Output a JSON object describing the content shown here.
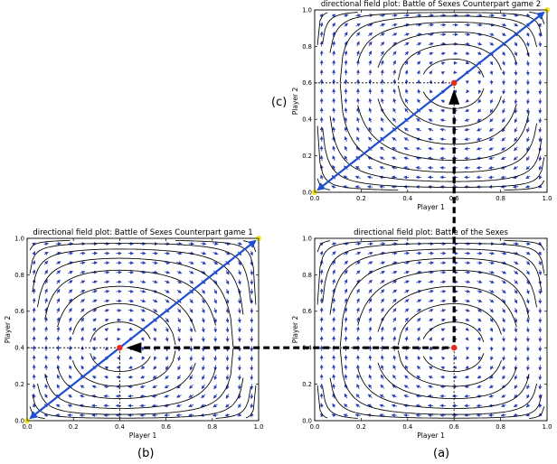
{
  "panels": [
    {
      "id": "a",
      "caption": "(a)",
      "title": "directional field plot: Battle of the Sexes",
      "xlabel": "Player 1",
      "ylabel": "Player 2",
      "xticks": [
        "0.0",
        "0.2",
        "0.4",
        "0.6",
        "0.8",
        "1.0"
      ],
      "yticks": [
        "0.0",
        "0.2",
        "0.4",
        "0.6",
        "0.8",
        "1.0"
      ],
      "equilibrium": [
        0.6,
        0.4
      ],
      "diagonal": "none",
      "yellow_dots": []
    },
    {
      "id": "b",
      "caption": "(b)",
      "title": "directional field plot: Battle of Sexes Counterpart game 1",
      "xlabel": "Player 1",
      "ylabel": "Player 2",
      "xticks": [
        "0.0",
        "0.2",
        "0.4",
        "0.6",
        "0.8",
        "1.0"
      ],
      "yticks": [
        "0.0",
        "0.2",
        "0.4",
        "0.6",
        "0.8",
        "1.0"
      ],
      "equilibrium": [
        0.4,
        0.4
      ],
      "diagonal": "both",
      "yellow_dots": [
        [
          1,
          1
        ],
        [
          0,
          0
        ]
      ]
    },
    {
      "id": "c",
      "caption": "(c)",
      "title": "directional field plot: Battle of Sexes Counterpart game 2",
      "xlabel": "Player 1",
      "ylabel": "Player 2",
      "xticks": [
        "0.0",
        "0.2",
        "0.4",
        "0.6",
        "0.8",
        "1.0"
      ],
      "yticks": [
        "0.0",
        "0.2",
        "0.4",
        "0.6",
        "0.8",
        "1.0"
      ],
      "equilibrium": [
        0.6,
        0.6
      ],
      "diagonal": "both",
      "yellow_dots": [
        [
          1,
          1
        ],
        [
          0,
          0
        ]
      ]
    }
  ],
  "colors": {
    "equilibrium": "#e8281c",
    "diagonal": "#1f4fd1",
    "quiver": "#2c3fb0",
    "stream": "#000000",
    "endpoint": "#f2e21c",
    "transition_arrow": "#000000"
  },
  "connectors": [
    {
      "from": "a",
      "to": "b",
      "style": "dashed-arrow"
    },
    {
      "from": "a",
      "to": "c",
      "style": "dashed-arrow"
    }
  ]
}
